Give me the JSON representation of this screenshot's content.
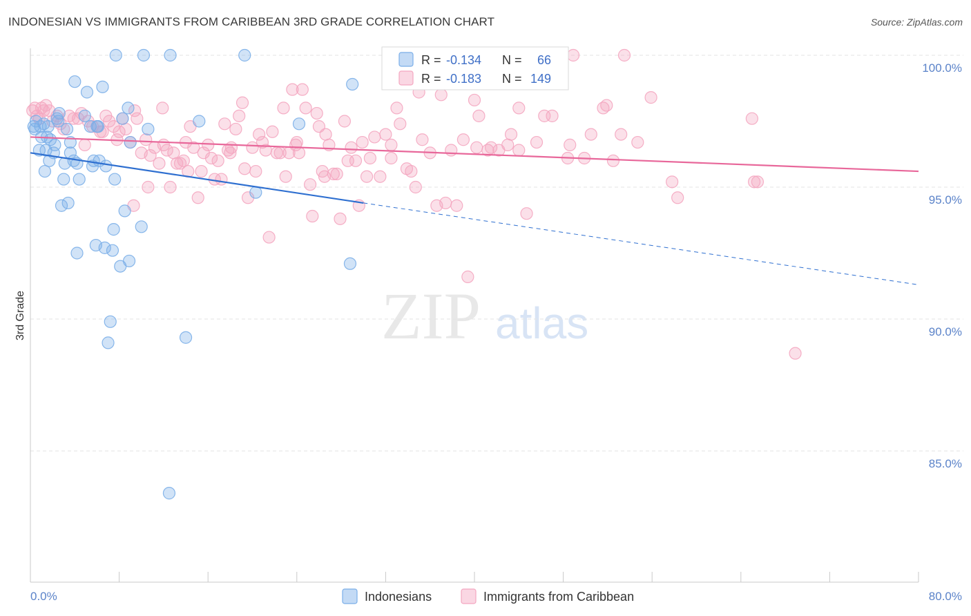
{
  "title": "INDONESIAN VS IMMIGRANTS FROM CARIBBEAN 3RD GRADE CORRELATION CHART",
  "source": "Source: ZipAtlas.com",
  "watermark": {
    "zip": "ZIP",
    "atlas": "atlas"
  },
  "chart_data": {
    "type": "scatter",
    "title": "INDONESIAN VS IMMIGRANTS FROM CARIBBEAN 3RD GRADE CORRELATION CHART",
    "ylabel": "3rd Grade",
    "xlabel": "",
    "xlim": [
      0,
      80
    ],
    "ylim": [
      80.5,
      100.8
    ],
    "x_tick_labels": {
      "left": "0.0%",
      "right": "80.0%"
    },
    "y_ticks": [
      {
        "value": 100,
        "label": "100.0%"
      },
      {
        "value": 95,
        "label": "95.0%"
      },
      {
        "value": 90,
        "label": "90.0%"
      },
      {
        "value": 85,
        "label": "85.0%"
      }
    ],
    "legend": {
      "rows": [
        {
          "r_label": "R =",
          "r_value": "-0.134",
          "n_label": "N =",
          "n_value": "66"
        },
        {
          "r_label": "R =",
          "r_value": "-0.183",
          "n_label": "N =",
          "n_value": "149"
        }
      ]
    },
    "series": [
      {
        "name": "Indonesians",
        "color": "#7aaee8",
        "line_color": "#2e6fd0",
        "r": -0.134,
        "n": 66,
        "trend": {
          "x0": 0,
          "y0": 96.3,
          "x1": 30,
          "y1": 94.4,
          "x_dash_end": 80,
          "y_dash_end": 91.3
        },
        "points": [
          [
            0.3,
            97.3
          ],
          [
            0.4,
            97.2
          ],
          [
            0.5,
            97.5
          ],
          [
            0.8,
            96.4
          ],
          [
            0.9,
            97.3
          ],
          [
            1.0,
            96.9
          ],
          [
            1.2,
            97.4
          ],
          [
            1.3,
            95.6
          ],
          [
            1.4,
            96.4
          ],
          [
            1.5,
            96.9
          ],
          [
            1.6,
            97.3
          ],
          [
            1.7,
            96.0
          ],
          [
            1.8,
            96.8
          ],
          [
            2.1,
            96.3
          ],
          [
            2.2,
            96.6
          ],
          [
            2.4,
            97.6
          ],
          [
            2.6,
            97.8
          ],
          [
            2.8,
            94.3
          ],
          [
            3.0,
            95.3
          ],
          [
            3.1,
            95.9
          ],
          [
            3.3,
            97.2
          ],
          [
            3.4,
            94.4
          ],
          [
            3.6,
            96.3
          ],
          [
            3.9,
            96.0
          ],
          [
            4.0,
            99.0
          ],
          [
            4.2,
            95.9
          ],
          [
            4.4,
            95.3
          ],
          [
            4.9,
            97.7
          ],
          [
            5.1,
            98.6
          ],
          [
            5.4,
            97.3
          ],
          [
            5.6,
            95.8
          ],
          [
            5.7,
            96.0
          ],
          [
            5.9,
            92.8
          ],
          [
            6.2,
            96.0
          ],
          [
            6.1,
            97.3
          ],
          [
            6.5,
            98.8
          ],
          [
            6.7,
            92.7
          ],
          [
            6.8,
            95.8
          ],
          [
            7.0,
            89.1
          ],
          [
            7.2,
            89.9
          ],
          [
            7.4,
            92.6
          ],
          [
            7.5,
            93.4
          ],
          [
            7.6,
            95.3
          ],
          [
            7.7,
            100.0
          ],
          [
            8.1,
            92.0
          ],
          [
            8.5,
            94.1
          ],
          [
            8.8,
            98.0
          ],
          [
            8.9,
            92.2
          ],
          [
            9.0,
            96.7
          ],
          [
            10.0,
            93.5
          ],
          [
            10.2,
            100.0
          ],
          [
            10.6,
            97.2
          ],
          [
            12.5,
            83.4
          ],
          [
            12.6,
            100.0
          ],
          [
            14.0,
            89.3
          ],
          [
            15.2,
            97.5
          ],
          [
            19.3,
            100.0
          ],
          [
            20.3,
            94.8
          ],
          [
            24.2,
            97.4
          ],
          [
            28.8,
            92.1
          ],
          [
            29.0,
            98.9
          ],
          [
            4.2,
            92.5
          ],
          [
            3.6,
            96.7
          ],
          [
            2.5,
            97.5
          ],
          [
            6.0,
            97.3
          ],
          [
            8.3,
            97.6
          ]
        ]
      },
      {
        "name": "Immigrants from Caribbean",
        "color": "#f4a6c0",
        "line_color": "#e8679a",
        "r": -0.183,
        "n": 149,
        "trend": {
          "x0": 0,
          "y0": 96.9,
          "x1": 80,
          "y1": 95.6
        },
        "points": [
          [
            0.2,
            97.9
          ],
          [
            0.4,
            98.0
          ],
          [
            0.6,
            97.7
          ],
          [
            0.8,
            97.6
          ],
          [
            1.0,
            98.0
          ],
          [
            1.2,
            97.9
          ],
          [
            1.4,
            98.1
          ],
          [
            1.7,
            97.9
          ],
          [
            2.0,
            97.5
          ],
          [
            2.4,
            97.7
          ],
          [
            2.7,
            97.4
          ],
          [
            3.0,
            97.2
          ],
          [
            3.5,
            97.7
          ],
          [
            3.9,
            97.6
          ],
          [
            4.3,
            97.6
          ],
          [
            4.6,
            97.8
          ],
          [
            4.9,
            96.6
          ],
          [
            5.2,
            97.5
          ],
          [
            5.6,
            97.3
          ],
          [
            6.0,
            97.3
          ],
          [
            6.3,
            97.1
          ],
          [
            6.8,
            97.7
          ],
          [
            7.1,
            97.5
          ],
          [
            7.5,
            97.3
          ],
          [
            7.8,
            96.8
          ],
          [
            8.0,
            97.1
          ],
          [
            8.3,
            97.6
          ],
          [
            8.6,
            97.2
          ],
          [
            9.0,
            96.7
          ],
          [
            9.3,
            94.3
          ],
          [
            9.6,
            97.6
          ],
          [
            10.0,
            96.3
          ],
          [
            10.4,
            96.8
          ],
          [
            10.6,
            95.0
          ],
          [
            10.8,
            96.2
          ],
          [
            11.2,
            96.5
          ],
          [
            11.6,
            95.9
          ],
          [
            12.0,
            96.6
          ],
          [
            12.3,
            96.4
          ],
          [
            12.6,
            95.0
          ],
          [
            12.9,
            96.3
          ],
          [
            13.2,
            95.9
          ],
          [
            13.5,
            95.9
          ],
          [
            13.8,
            96.0
          ],
          [
            14.0,
            96.7
          ],
          [
            14.4,
            97.3
          ],
          [
            14.7,
            96.5
          ],
          [
            15.1,
            94.6
          ],
          [
            15.4,
            95.6
          ],
          [
            15.6,
            96.3
          ],
          [
            16.0,
            96.6
          ],
          [
            16.3,
            96.1
          ],
          [
            16.6,
            95.3
          ],
          [
            16.9,
            96.0
          ],
          [
            17.2,
            95.3
          ],
          [
            17.5,
            97.4
          ],
          [
            17.8,
            96.4
          ],
          [
            18.1,
            96.5
          ],
          [
            18.5,
            97.2
          ],
          [
            18.8,
            97.7
          ],
          [
            19.1,
            98.2
          ],
          [
            19.3,
            95.7
          ],
          [
            19.6,
            94.6
          ],
          [
            20.0,
            96.5
          ],
          [
            20.3,
            95.6
          ],
          [
            20.6,
            97.0
          ],
          [
            20.9,
            96.7
          ],
          [
            21.2,
            96.4
          ],
          [
            21.5,
            93.1
          ],
          [
            21.8,
            97.1
          ],
          [
            22.2,
            96.3
          ],
          [
            22.5,
            96.3
          ],
          [
            22.8,
            98.0
          ],
          [
            23.0,
            95.4
          ],
          [
            23.3,
            96.3
          ],
          [
            23.6,
            98.7
          ],
          [
            23.9,
            96.6
          ],
          [
            24.2,
            96.3
          ],
          [
            24.5,
            98.7
          ],
          [
            24.8,
            98.0
          ],
          [
            25.2,
            95.1
          ],
          [
            25.4,
            93.9
          ],
          [
            25.8,
            97.8
          ],
          [
            26.0,
            97.3
          ],
          [
            26.3,
            95.6
          ],
          [
            26.6,
            97.0
          ],
          [
            26.9,
            96.6
          ],
          [
            27.3,
            95.5
          ],
          [
            27.6,
            95.5
          ],
          [
            27.9,
            93.8
          ],
          [
            28.3,
            97.5
          ],
          [
            28.6,
            96.0
          ],
          [
            28.9,
            96.5
          ],
          [
            29.3,
            96.0
          ],
          [
            29.6,
            94.3
          ],
          [
            29.9,
            96.7
          ],
          [
            30.3,
            95.4
          ],
          [
            30.6,
            96.1
          ],
          [
            31.0,
            96.9
          ],
          [
            31.5,
            95.4
          ],
          [
            32.0,
            97.0
          ],
          [
            32.5,
            96.6
          ],
          [
            33.0,
            98.0
          ],
          [
            33.3,
            97.4
          ],
          [
            33.9,
            95.7
          ],
          [
            34.3,
            95.6
          ],
          [
            34.7,
            95.0
          ],
          [
            35.0,
            98.6
          ],
          [
            35.3,
            96.8
          ],
          [
            36.0,
            96.3
          ],
          [
            36.6,
            94.3
          ],
          [
            37.0,
            98.5
          ],
          [
            37.4,
            94.4
          ],
          [
            37.9,
            96.4
          ],
          [
            38.4,
            94.3
          ],
          [
            39.0,
            96.8
          ],
          [
            39.4,
            91.6
          ],
          [
            40.0,
            98.3
          ],
          [
            40.4,
            97.7
          ],
          [
            41.2,
            96.4
          ],
          [
            41.5,
            96.5
          ],
          [
            42.2,
            96.4
          ],
          [
            43.0,
            96.6
          ],
          [
            43.3,
            97.0
          ],
          [
            44.0,
            96.4
          ],
          [
            44.7,
            94.0
          ],
          [
            45.6,
            96.7
          ],
          [
            46.3,
            97.7
          ],
          [
            47.0,
            97.7
          ],
          [
            48.4,
            96.1
          ],
          [
            48.9,
            100.0
          ],
          [
            49.9,
            96.1
          ],
          [
            51.6,
            98.0
          ],
          [
            51.9,
            98.1
          ],
          [
            52.5,
            96.0
          ],
          [
            53.2,
            97.0
          ],
          [
            53.5,
            100.0
          ],
          [
            55.9,
            98.4
          ],
          [
            57.8,
            95.2
          ],
          [
            58.3,
            94.6
          ],
          [
            65.0,
            97.6
          ],
          [
            65.2,
            95.2
          ],
          [
            65.5,
            95.2
          ],
          [
            68.9,
            88.7
          ],
          [
            6.5,
            97.1
          ],
          [
            9.4,
            97.9
          ],
          [
            11.9,
            98.0
          ],
          [
            18.0,
            96.3
          ],
          [
            24.0,
            96.7
          ],
          [
            26.5,
            95.4
          ],
          [
            32.5,
            96.1
          ],
          [
            40.2,
            96.5
          ],
          [
            44.0,
            98.0
          ],
          [
            48.6,
            96.6
          ],
          [
            50.5,
            97.0
          ],
          [
            54.7,
            96.7
          ],
          [
            14.2,
            95.6
          ]
        ]
      }
    ]
  }
}
